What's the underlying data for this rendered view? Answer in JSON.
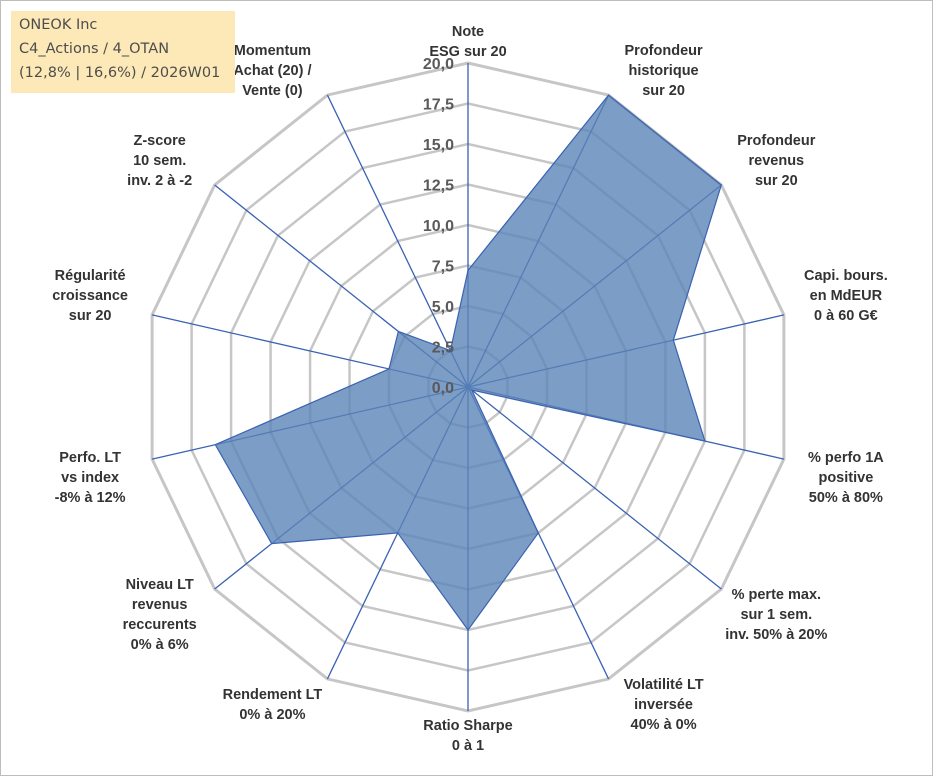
{
  "title_lines": [
    "ONEOK Inc",
    "C4_Actions / 4_OTAN",
    "(12,8% | 16,6%) / 2026W01"
  ],
  "colors": {
    "fill": "#5b84b7",
    "axis": "#3a62b2",
    "grid": "#c6c6c6"
  },
  "chart_data": {
    "type": "radar",
    "r_range": [
      0,
      20
    ],
    "r_ticks": [
      "0,0",
      "2,5",
      "5,0",
      "7,5",
      "10,0",
      "12,5",
      "15,0",
      "17,5",
      "20,0"
    ],
    "grid": true,
    "categories": [
      "Note\nESG sur 20",
      "Profondeur\nhistorique\nsur 20",
      "Profondeur\nrevenus\nsur 20",
      "Capi. bours.\nen MdEUR\n0 à 60 G€",
      "% perfo 1A\npositive\n50% à 80%",
      "% perte max.\nsur 1 sem.\ninv. 50% à 20%",
      "Volatilité LT\ninversée\n40% à 0%",
      "Ratio Sharpe\n0 à 1",
      "Rendement LT\n0% à 20%",
      "Niveau LT\nrevenus\nreccurents\n0% à 6%",
      "Perfo. LT\nvs index\n-8% à 12%",
      "Régularité\ncroissance\nsur 20",
      "Z-score\n10 sem.\ninv. 2 à -2",
      "Momentum\nAchat (20) /\nVente (0)"
    ],
    "series": [
      {
        "values": [
          7.2,
          20.0,
          20.0,
          13.0,
          15.0,
          0.3,
          10.0,
          15.0,
          10.0,
          15.5,
          16.0,
          5.0,
          5.5,
          2.5
        ]
      }
    ]
  }
}
